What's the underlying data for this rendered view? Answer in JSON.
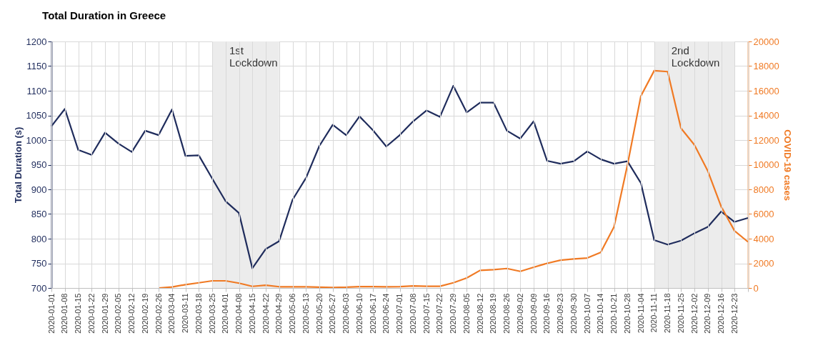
{
  "chart_data": {
    "type": "line",
    "title": "Total Duration in Greece",
    "ylabel": "Total Duration (s)",
    "y2label": "COVID-19 cases",
    "categories": [
      "2020-01-01",
      "2020-01-08",
      "2020-01-15",
      "2020-01-22",
      "2020-01-29",
      "2020-02-05",
      "2020-02-12",
      "2020-02-19",
      "2020-02-26",
      "2020-03-04",
      "2020-03-11",
      "2020-03-18",
      "2020-03-25",
      "2020-04-01",
      "2020-04-08",
      "2020-04-15",
      "2020-04-22",
      "2020-04-29",
      "2020-05-06",
      "2020-05-13",
      "2020-05-20",
      "2020-05-27",
      "2020-06-03",
      "2020-06-10",
      "2020-06-17",
      "2020-06-24",
      "2020-07-01",
      "2020-07-08",
      "2020-07-15",
      "2020-07-22",
      "2020-07-29",
      "2020-08-05",
      "2020-08-12",
      "2020-08-19",
      "2020-08-26",
      "2020-09-02",
      "2020-09-09",
      "2020-09-16",
      "2020-09-23",
      "2020-09-30",
      "2020-10-07",
      "2020-10-14",
      "2020-10-21",
      "2020-10-28",
      "2020-11-04",
      "2020-11-11",
      "2020-11-18",
      "2020-11-25",
      "2020-12-02",
      "2020-12-09",
      "2020-12-16",
      "2020-12-23",
      null
    ],
    "series": [
      {
        "color": "#1f2c5c",
        "axis": "y",
        "values": [
          1028,
          1063,
          980,
          970,
          1015,
          993,
          976,
          1019,
          1010,
          1062,
          968,
          969,
          922,
          876,
          852,
          740,
          779,
          795,
          879,
          923,
          988,
          1031,
          1010,
          1048,
          1020,
          987,
          1010,
          1038,
          1060,
          1047,
          1110,
          1056,
          1076,
          1076,
          1019,
          1003,
          1038,
          958,
          952,
          957,
          977,
          961,
          952,
          957,
          913,
          797,
          788,
          796,
          811,
          824,
          855,
          834,
          842
        ]
      },
      {
        "color": "#f07a24",
        "axis": "y2",
        "values": [
          null,
          null,
          null,
          null,
          null,
          null,
          null,
          null,
          0,
          80,
          270,
          420,
          580,
          580,
          390,
          130,
          230,
          100,
          100,
          90,
          60,
          40,
          60,
          110,
          110,
          90,
          110,
          170,
          140,
          140,
          420,
          810,
          1430,
          1490,
          1580,
          1350,
          1680,
          2000,
          2250,
          2350,
          2430,
          2890,
          4960,
          9970,
          15560,
          17630,
          17550,
          12960,
          11610,
          9490,
          6600,
          4630,
          3740
        ]
      }
    ],
    "ylim": [
      700,
      1200
    ],
    "yticks": [
      700,
      750,
      800,
      850,
      900,
      950,
      1000,
      1050,
      1100,
      1150,
      1200
    ],
    "y2lim": [
      0,
      20000
    ],
    "y2ticks": [
      0,
      2000,
      4000,
      6000,
      8000,
      10000,
      12000,
      14000,
      16000,
      18000,
      20000
    ],
    "bands": [
      {
        "axis": "x",
        "from": "2020-03-25",
        "to": "2020-04-29",
        "label": "1st\nLockdown",
        "color": "#ececec"
      },
      {
        "axis": "x",
        "from": "2020-11-11",
        "to": "2020-12-23",
        "label": "2nd\nLockdown",
        "color": "#ececec"
      }
    ],
    "grid": true,
    "marker": "none",
    "line_style": "solid"
  }
}
